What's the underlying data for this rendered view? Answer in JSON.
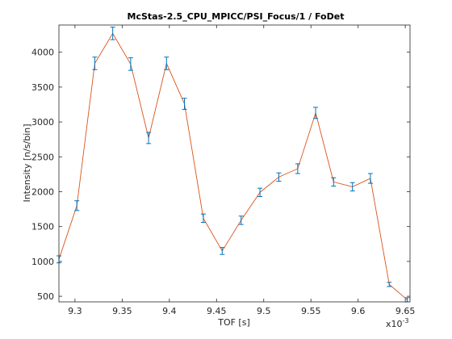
{
  "chart_data": {
    "type": "line",
    "title": "McStas-2.5_CPU_MPICC/PSI_Focus/1 / FoDet",
    "xlabel": "TOF [s]",
    "ylabel": "Intensity [n/s/bin]",
    "x_exponent_label": "x10",
    "x_exponent_power": "-3",
    "xlim": [
      9.283,
      9.655
    ],
    "ylim": [
      420,
      4390
    ],
    "x_ticks": [
      9.3,
      9.35,
      9.4,
      9.45,
      9.5,
      9.55,
      9.6,
      9.65
    ],
    "x_tick_labels": [
      "9.3",
      "9.35",
      "9.4",
      "9.45",
      "9.5",
      "9.55",
      "9.6",
      "9.65"
    ],
    "y_ticks": [
      500,
      1000,
      1500,
      2000,
      2500,
      3000,
      3500,
      4000
    ],
    "y_tick_labels": [
      "500",
      "1000",
      "1500",
      "2000",
      "2500",
      "3000",
      "3500",
      "4000"
    ],
    "grid": false,
    "box": true,
    "line_color": "#d95319",
    "errorbar_color": "#0072bd",
    "series": [
      {
        "x": [
          9.283,
          9.302,
          9.321,
          9.34,
          9.359,
          9.378,
          9.397,
          9.416,
          9.436,
          9.456,
          9.476,
          9.496,
          9.516,
          9.536,
          9.555,
          9.574,
          9.594,
          9.613,
          9.633,
          9.652
        ],
        "y": [
          1030,
          1800,
          3840,
          4270,
          3830,
          2770,
          3840,
          3260,
          1620,
          1150,
          1590,
          1990,
          2210,
          2330,
          3130,
          2140,
          2070,
          2190,
          670,
          450
        ],
        "err": [
          50,
          70,
          90,
          90,
          90,
          80,
          90,
          80,
          60,
          50,
          60,
          60,
          60,
          70,
          80,
          60,
          60,
          70,
          30,
          30
        ]
      }
    ]
  }
}
